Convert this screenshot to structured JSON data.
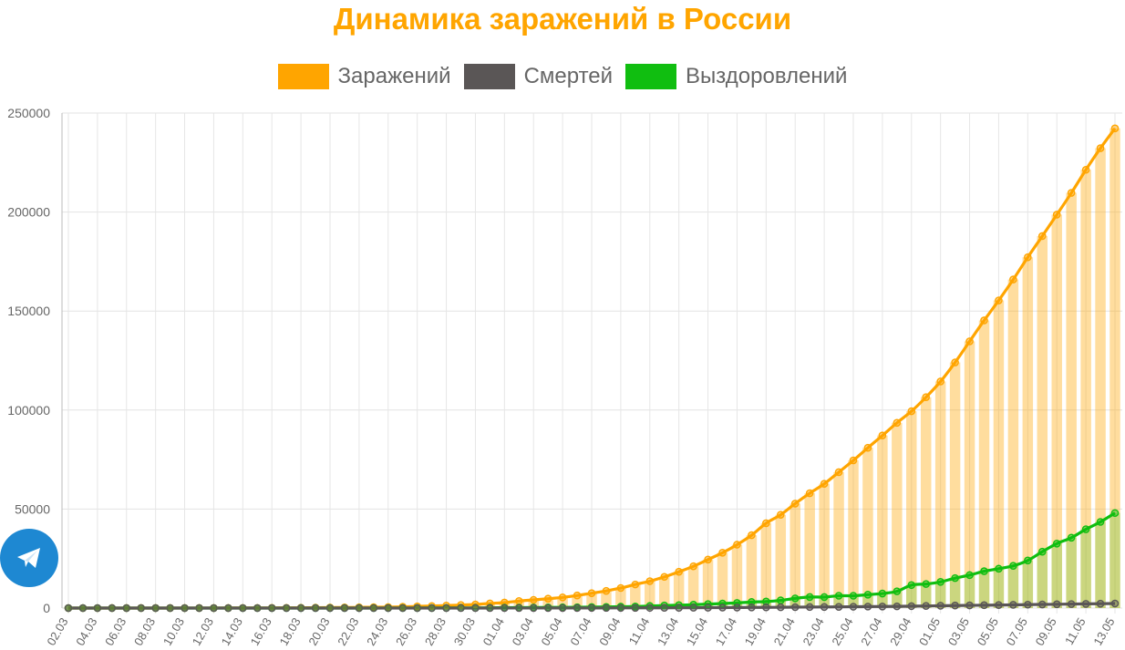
{
  "colors": {
    "title": "#FFA500",
    "infected": "#FFA500",
    "deaths": "#5A5656",
    "recovered": "#10BE10",
    "telegram": "#1E88D2"
  },
  "telegram_button": {
    "icon": "telegram-paper-plane-icon"
  },
  "chart_data": {
    "type": "line",
    "title": "Динамика заражений в России",
    "legend_position": "top",
    "grid": true,
    "ylim": [
      0,
      250000
    ],
    "yticks": [
      0,
      50000,
      100000,
      150000,
      200000,
      250000
    ],
    "x": [
      "02.03",
      "03.03",
      "04.03",
      "05.03",
      "06.03",
      "07.03",
      "08.03",
      "09.03",
      "10.03",
      "11.03",
      "12.03",
      "13.03",
      "14.03",
      "15.03",
      "16.03",
      "17.03",
      "18.03",
      "19.03",
      "20.03",
      "21.03",
      "22.03",
      "23.03",
      "24.03",
      "25.03",
      "26.03",
      "27.03",
      "28.03",
      "29.03",
      "30.03",
      "31.03",
      "01.04",
      "02.04",
      "03.04",
      "04.04",
      "05.04",
      "06.04",
      "07.04",
      "08.04",
      "09.04",
      "10.04",
      "11.04",
      "12.04",
      "13.04",
      "14.04",
      "15.04",
      "16.04",
      "17.04",
      "18.04",
      "19.04",
      "20.04",
      "21.04",
      "22.04",
      "23.04",
      "24.04",
      "25.04",
      "26.04",
      "27.04",
      "28.04",
      "29.04",
      "30.04",
      "01.05",
      "02.05",
      "03.05",
      "04.05",
      "05.05",
      "06.05",
      "07.05",
      "08.05",
      "09.05",
      "10.05",
      "11.05",
      "12.05",
      "13.05"
    ],
    "xtick_labels": [
      "02.03",
      "04.03",
      "06.03",
      "08.03",
      "10.03",
      "12.03",
      "14.03",
      "16.03",
      "18.03",
      "20.03",
      "22.03",
      "24.03",
      "26.03",
      "28.03",
      "30.03",
      "01.04",
      "03.04",
      "05.04",
      "07.04",
      "09.04",
      "11.04",
      "13.04",
      "15.04",
      "17.04",
      "19.04",
      "21.04",
      "23.04",
      "25.04",
      "27.04",
      "29.04",
      "01.05",
      "03.05",
      "05.05",
      "07.05",
      "09.05",
      "11.05",
      "13.05"
    ],
    "series": [
      {
        "name": "Заражений",
        "style": "line+bar",
        "values": [
          3,
          3,
          4,
          6,
          10,
          13,
          17,
          17,
          20,
          28,
          34,
          45,
          59,
          63,
          93,
          114,
          147,
          199,
          253,
          306,
          367,
          438,
          495,
          658,
          840,
          1036,
          1264,
          1534,
          1836,
          2337,
          2777,
          3548,
          4149,
          4731,
          5389,
          6343,
          7497,
          8672,
          10131,
          11917,
          13584,
          15770,
          18328,
          21102,
          24490,
          27938,
          32008,
          36793,
          42853,
          47121,
          52763,
          57999,
          62773,
          68622,
          74588,
          80949,
          87147,
          93558,
          99399,
          106498,
          114431,
          124054,
          134687,
          145268,
          155370,
          165929,
          177160,
          187859,
          198676,
          209688,
          221344,
          232243,
          242271
        ]
      },
      {
        "name": "Смертей",
        "style": "line",
        "values": [
          0,
          0,
          0,
          0,
          0,
          0,
          0,
          0,
          0,
          0,
          0,
          0,
          0,
          0,
          0,
          0,
          0,
          1,
          1,
          1,
          1,
          1,
          1,
          3,
          3,
          4,
          4,
          8,
          9,
          17,
          24,
          30,
          34,
          43,
          45,
          47,
          58,
          63,
          76,
          94,
          106,
          130,
          148,
          170,
          198,
          232,
          273,
          313,
          361,
          405,
          456,
          513,
          555,
          615,
          681,
          747,
          794,
          867,
          972,
          1073,
          1169,
          1280,
          1356,
          1451,
          1537,
          1625,
          1723,
          1827,
          1915,
          2009,
          2116,
          2212,
          2305
        ]
      },
      {
        "name": "Выздоровлений",
        "style": "line+bar",
        "values": [
          0,
          0,
          0,
          0,
          0,
          0,
          0,
          0,
          2,
          3,
          3,
          3,
          3,
          5,
          5,
          5,
          8,
          9,
          16,
          16,
          16,
          17,
          22,
          22,
          38,
          45,
          49,
          64,
          66,
          121,
          190,
          235,
          281,
          333,
          355,
          406,
          494,
          580,
          698,
          794,
          1045,
          1291,
          1470,
          1694,
          1986,
          2304,
          2590,
          3057,
          3291,
          3873,
          4891,
          5568,
          5568,
          6213,
          6213,
          6767,
          7346,
          8456,
          11619,
          12142,
          13220,
          15131,
          16639,
          18605,
          19865,
          21327,
          24018,
          28476,
          32545,
          35542,
          39801,
          43512,
          48003
        ]
      }
    ]
  }
}
